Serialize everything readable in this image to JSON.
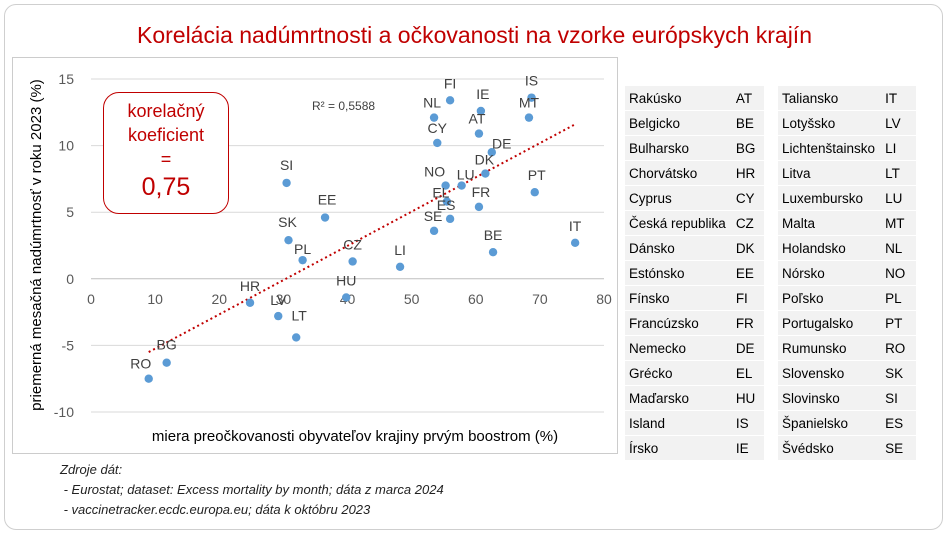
{
  "title": "Korelácia nadúmrtnosti a očkovanosti na vzorke európskych krajín",
  "correlation_box": {
    "line1": "korelačný",
    "line2": "koeficient",
    "line3": "=",
    "value": "0,75"
  },
  "sources": {
    "heading": "Zdroje dát:",
    "lines": [
      " - Eurostat; dataset: Excess mortality by month; dáta z marca 2024",
      " - vaccinetracker.ecdc.europa.eu; dáta k októbru 2023"
    ]
  },
  "chart_data": {
    "type": "scatter",
    "xlabel": "miera preočkovanosti obyvateľov krajiny prvým boostrom (%)",
    "ylabel": "priemerná mesačná nadúmrtnosť v roku 2023 (%)",
    "xlim": [
      0,
      80
    ],
    "ylim": [
      -10,
      15
    ],
    "x_ticks": [
      0,
      10,
      20,
      30,
      40,
      50,
      60,
      70,
      80
    ],
    "y_ticks": [
      -10,
      -5,
      0,
      5,
      10,
      15
    ],
    "grid": "horizontal",
    "r2_label": "R² = 0,5588",
    "trendline": {
      "style": "dotted",
      "color": "#c00000",
      "x": [
        9,
        75.5
      ],
      "y": [
        -5.5,
        11.6
      ]
    },
    "point_color": "#5b9bd5",
    "points": [
      {
        "label": "FI",
        "x": 56,
        "y": 13.4
      },
      {
        "label": "IS",
        "x": 68.7,
        "y": 13.6
      },
      {
        "label": "NL",
        "x": 53.5,
        "y": 12.1
      },
      {
        "label": "IE",
        "x": 60.8,
        "y": 12.6
      },
      {
        "label": "MT",
        "x": 68.3,
        "y": 12.1
      },
      {
        "label": "AT",
        "x": 60.5,
        "y": 10.9
      },
      {
        "label": "CY",
        "x": 54,
        "y": 10.2
      },
      {
        "label": "DE",
        "x": 62.5,
        "y": 9.5
      },
      {
        "label": "DK",
        "x": 61.5,
        "y": 7.9
      },
      {
        "label": "NO",
        "x": 55.3,
        "y": 7
      },
      {
        "label": "LU",
        "x": 57.8,
        "y": 7
      },
      {
        "label": "EL",
        "x": 55.5,
        "y": 5.8
      },
      {
        "label": "FR",
        "x": 60.5,
        "y": 5.4
      },
      {
        "label": "ES",
        "x": 56,
        "y": 4.5
      },
      {
        "label": "SE",
        "x": 53.5,
        "y": 3.6
      },
      {
        "label": "PT",
        "x": 69.2,
        "y": 6.5
      },
      {
        "label": "IT",
        "x": 75.5,
        "y": 2.7
      },
      {
        "label": "BE",
        "x": 62.7,
        "y": 2
      },
      {
        "label": "SI",
        "x": 30.5,
        "y": 7.2
      },
      {
        "label": "EE",
        "x": 36.5,
        "y": 4.6
      },
      {
        "label": "SK",
        "x": 30.8,
        "y": 2.9
      },
      {
        "label": "PL",
        "x": 33,
        "y": 1.4
      },
      {
        "label": "CZ",
        "x": 40.8,
        "y": 1.3
      },
      {
        "label": "LI",
        "x": 48.2,
        "y": 0.9
      },
      {
        "label": "HU",
        "x": 39.8,
        "y": -1.4
      },
      {
        "label": "HR",
        "x": 24.8,
        "y": -1.8
      },
      {
        "label": "LV",
        "x": 29.2,
        "y": -2.8
      },
      {
        "label": "LT",
        "x": 32,
        "y": -4.4
      },
      {
        "label": "BG",
        "x": 11.8,
        "y": -6.3
      },
      {
        "label": "RO",
        "x": 9,
        "y": -7.5
      }
    ]
  },
  "country_table_left": [
    [
      "Rakúsko",
      "AT"
    ],
    [
      "Belgicko",
      "BE"
    ],
    [
      "Bulharsko",
      "BG"
    ],
    [
      "Chorvátsko",
      "HR"
    ],
    [
      "Cyprus",
      "CY"
    ],
    [
      "Česká republika",
      "CZ"
    ],
    [
      "Dánsko",
      "DK"
    ],
    [
      "Estónsko",
      "EE"
    ],
    [
      "Fínsko",
      "FI"
    ],
    [
      "Francúzsko",
      "FR"
    ],
    [
      "Nemecko",
      "DE"
    ],
    [
      "Grécko",
      "EL"
    ],
    [
      "Maďarsko",
      "HU"
    ],
    [
      "Island",
      "IS"
    ],
    [
      "Írsko",
      "IE"
    ]
  ],
  "country_table_right": [
    [
      "Taliansko",
      "IT"
    ],
    [
      "Lotyšsko",
      "LV"
    ],
    [
      "Lichtenštainsko",
      "LI"
    ],
    [
      "Litva",
      "LT"
    ],
    [
      "Luxembursko",
      "LU"
    ],
    [
      "Malta",
      "MT"
    ],
    [
      "Holandsko",
      "NL"
    ],
    [
      "Nórsko",
      "NO"
    ],
    [
      "Poľsko",
      "PL"
    ],
    [
      "Portugalsko",
      "PT"
    ],
    [
      "Rumunsko",
      "RO"
    ],
    [
      "Slovensko",
      "SK"
    ],
    [
      "Slovinsko",
      "SI"
    ],
    [
      "Španielsko",
      "ES"
    ],
    [
      "Švédsko",
      "SE"
    ]
  ]
}
